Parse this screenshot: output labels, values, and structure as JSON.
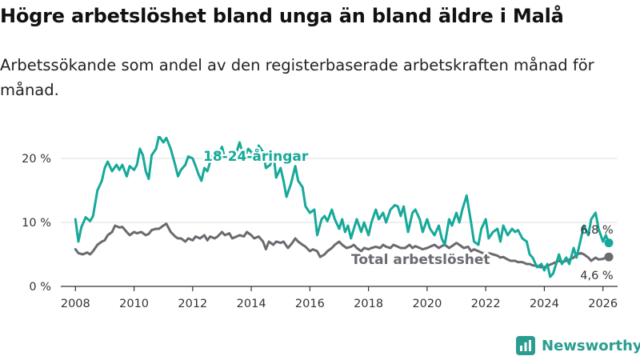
{
  "title": "Högre arbetslöshet bland unga än bland äldre i Malå",
  "subtitle": "Arbetssökande som andel av den registerbaserade arbetskraften månad för månad.",
  "brand": {
    "name": "Newsworthy"
  },
  "colors": {
    "youth": "#16a99a",
    "total": "#6b6a70",
    "axis": "#333333",
    "grid": "#dddddd"
  },
  "chart_data": {
    "type": "line",
    "title": "Högre arbetslöshet bland unga än bland äldre i Malå",
    "xlabel": "",
    "ylabel": "",
    "xlim": [
      2007.5,
      2026.5
    ],
    "ylim": [
      0,
      23
    ],
    "y_ticks": [
      0,
      10,
      20
    ],
    "y_tick_labels": [
      "0 %",
      "10 %",
      "20 %"
    ],
    "x_ticks": [
      2008,
      2010,
      2012,
      2014,
      2016,
      2018,
      2020,
      2022,
      2024,
      2026
    ],
    "x_tick_labels": [
      "2008",
      "2010",
      "2012",
      "2014",
      "2016",
      "2018",
      "2020",
      "2022",
      "2024",
      "2026"
    ],
    "series": [
      {
        "name": "18-24-åringar",
        "label": "18-24-åringar",
        "end_label": "6,8 %",
        "end_value": 6.8,
        "points": [
          [
            2008.0,
            10.5
          ],
          [
            2008.1,
            7.0
          ],
          [
            2008.2,
            9.2
          ],
          [
            2008.35,
            10.8
          ],
          [
            2008.5,
            10.2
          ],
          [
            2008.6,
            11.0
          ],
          [
            2008.75,
            15.0
          ],
          [
            2008.9,
            16.5
          ],
          [
            2009.0,
            18.5
          ],
          [
            2009.1,
            19.5
          ],
          [
            2009.25,
            18.0
          ],
          [
            2009.4,
            19.0
          ],
          [
            2009.5,
            18.2
          ],
          [
            2009.6,
            19.0
          ],
          [
            2009.75,
            17.2
          ],
          [
            2009.85,
            18.8
          ],
          [
            2010.0,
            18.2
          ],
          [
            2010.1,
            19.0
          ],
          [
            2010.2,
            21.5
          ],
          [
            2010.3,
            20.5
          ],
          [
            2010.4,
            18.0
          ],
          [
            2010.5,
            16.8
          ],
          [
            2010.6,
            20.5
          ],
          [
            2010.75,
            21.5
          ],
          [
            2010.85,
            23.5
          ],
          [
            2011.0,
            22.5
          ],
          [
            2011.1,
            23.2
          ],
          [
            2011.25,
            21.5
          ],
          [
            2011.4,
            19.0
          ],
          [
            2011.5,
            17.2
          ],
          [
            2011.6,
            18.2
          ],
          [
            2011.75,
            19.0
          ],
          [
            2011.85,
            20.3
          ],
          [
            2012.0,
            20.0
          ],
          [
            2012.1,
            18.8
          ],
          [
            2012.2,
            17.5
          ],
          [
            2012.3,
            16.5
          ],
          [
            2012.4,
            18.5
          ],
          [
            2012.5,
            18.0
          ],
          [
            2012.6,
            19.5
          ],
          [
            2012.75,
            21.0
          ],
          [
            2012.9,
            20.8
          ],
          [
            2013.0,
            21.8
          ],
          [
            2013.1,
            20.0
          ],
          [
            2013.25,
            20.5
          ],
          [
            2013.35,
            19.5
          ],
          [
            2013.5,
            21.0
          ],
          [
            2013.6,
            22.5
          ],
          [
            2013.75,
            20.0
          ],
          [
            2013.9,
            21.5
          ],
          [
            2014.0,
            21.0
          ],
          [
            2014.15,
            19.5
          ],
          [
            2014.25,
            22.0
          ],
          [
            2014.4,
            21.0
          ],
          [
            2014.5,
            18.5
          ],
          [
            2014.65,
            19.0
          ],
          [
            2014.75,
            21.0
          ],
          [
            2014.85,
            17.0
          ],
          [
            2015.0,
            18.5
          ],
          [
            2015.1,
            16.5
          ],
          [
            2015.2,
            14.0
          ],
          [
            2015.35,
            16.0
          ],
          [
            2015.5,
            18.8
          ],
          [
            2015.6,
            16.5
          ],
          [
            2015.75,
            15.5
          ],
          [
            2015.85,
            12.5
          ],
          [
            2016.0,
            11.5
          ],
          [
            2016.15,
            12.0
          ],
          [
            2016.25,
            8.0
          ],
          [
            2016.4,
            10.5
          ],
          [
            2016.5,
            11.0
          ],
          [
            2016.6,
            10.2
          ],
          [
            2016.75,
            12.0
          ],
          [
            2016.85,
            10.5
          ],
          [
            2017.0,
            9.0
          ],
          [
            2017.1,
            10.5
          ],
          [
            2017.2,
            8.5
          ],
          [
            2017.3,
            9.5
          ],
          [
            2017.4,
            7.5
          ],
          [
            2017.5,
            9.0
          ],
          [
            2017.6,
            10.5
          ],
          [
            2017.75,
            8.5
          ],
          [
            2017.85,
            10.0
          ],
          [
            2018.0,
            8.0
          ],
          [
            2018.1,
            10.0
          ],
          [
            2018.25,
            12.0
          ],
          [
            2018.35,
            10.5
          ],
          [
            2018.5,
            11.5
          ],
          [
            2018.6,
            10.0
          ],
          [
            2018.75,
            12.0
          ],
          [
            2018.9,
            12.7
          ],
          [
            2019.0,
            12.5
          ],
          [
            2019.1,
            11.0
          ],
          [
            2019.2,
            12.5
          ],
          [
            2019.35,
            8.5
          ],
          [
            2019.5,
            11.5
          ],
          [
            2019.6,
            12.0
          ],
          [
            2019.75,
            10.5
          ],
          [
            2019.85,
            8.5
          ],
          [
            2020.0,
            10.5
          ],
          [
            2020.1,
            9.0
          ],
          [
            2020.25,
            8.0
          ],
          [
            2020.4,
            9.5
          ],
          [
            2020.5,
            7.5
          ],
          [
            2020.6,
            6.5
          ],
          [
            2020.75,
            10.5
          ],
          [
            2020.85,
            9.5
          ],
          [
            2021.0,
            11.5
          ],
          [
            2021.1,
            10.0
          ],
          [
            2021.2,
            12.0
          ],
          [
            2021.35,
            14.2
          ],
          [
            2021.5,
            10.0
          ],
          [
            2021.6,
            7.0
          ],
          [
            2021.75,
            6.5
          ],
          [
            2021.85,
            9.0
          ],
          [
            2022.0,
            10.5
          ],
          [
            2022.1,
            7.5
          ],
          [
            2022.25,
            8.5
          ],
          [
            2022.4,
            9.0
          ],
          [
            2022.5,
            7.0
          ],
          [
            2022.6,
            9.5
          ],
          [
            2022.75,
            8.0
          ],
          [
            2022.9,
            9.0
          ],
          [
            2023.0,
            8.5
          ],
          [
            2023.1,
            8.8
          ],
          [
            2023.25,
            7.5
          ],
          [
            2023.4,
            7.0
          ],
          [
            2023.5,
            5.0
          ],
          [
            2023.6,
            4.5
          ],
          [
            2023.75,
            3.0
          ],
          [
            2023.9,
            3.5
          ],
          [
            2024.0,
            2.5
          ],
          [
            2024.1,
            3.5
          ],
          [
            2024.2,
            1.5
          ],
          [
            2024.3,
            2.0
          ],
          [
            2024.4,
            3.5
          ],
          [
            2024.5,
            5.0
          ],
          [
            2024.6,
            3.5
          ],
          [
            2024.75,
            4.5
          ],
          [
            2024.85,
            3.5
          ],
          [
            2025.0,
            6.0
          ],
          [
            2025.1,
            4.5
          ],
          [
            2025.25,
            7.5
          ],
          [
            2025.35,
            9.5
          ],
          [
            2025.5,
            8.0
          ],
          [
            2025.6,
            10.5
          ],
          [
            2025.75,
            11.5
          ],
          [
            2025.85,
            9.0
          ],
          [
            2026.0,
            7.0
          ],
          [
            2026.1,
            8.0
          ],
          [
            2026.2,
            6.8
          ]
        ]
      },
      {
        "name": "Total arbetslöshet",
        "label": "Total arbetslöshet",
        "end_label": "4,6 %",
        "end_value": 4.6,
        "points": [
          [
            2008.0,
            5.8
          ],
          [
            2008.1,
            5.2
          ],
          [
            2008.25,
            5.0
          ],
          [
            2008.4,
            5.3
          ],
          [
            2008.5,
            5.0
          ],
          [
            2008.6,
            5.5
          ],
          [
            2008.75,
            6.5
          ],
          [
            2008.9,
            7.0
          ],
          [
            2009.0,
            7.2
          ],
          [
            2009.1,
            8.0
          ],
          [
            2009.25,
            8.5
          ],
          [
            2009.35,
            9.5
          ],
          [
            2009.5,
            9.2
          ],
          [
            2009.6,
            9.3
          ],
          [
            2009.75,
            8.5
          ],
          [
            2009.85,
            8.0
          ],
          [
            2010.0,
            8.5
          ],
          [
            2010.1,
            8.3
          ],
          [
            2010.25,
            8.5
          ],
          [
            2010.4,
            8.0
          ],
          [
            2010.5,
            8.2
          ],
          [
            2010.6,
            8.8
          ],
          [
            2010.75,
            9.0
          ],
          [
            2010.85,
            9.0
          ],
          [
            2011.0,
            9.5
          ],
          [
            2011.1,
            9.8
          ],
          [
            2011.25,
            8.5
          ],
          [
            2011.4,
            7.8
          ],
          [
            2011.5,
            7.5
          ],
          [
            2011.6,
            7.5
          ],
          [
            2011.75,
            7.0
          ],
          [
            2011.85,
            7.5
          ],
          [
            2012.0,
            7.2
          ],
          [
            2012.1,
            7.8
          ],
          [
            2012.25,
            7.5
          ],
          [
            2012.4,
            8.0
          ],
          [
            2012.5,
            7.2
          ],
          [
            2012.6,
            7.8
          ],
          [
            2012.75,
            7.5
          ],
          [
            2012.85,
            7.8
          ],
          [
            2013.0,
            8.5
          ],
          [
            2013.1,
            8.0
          ],
          [
            2013.25,
            8.3
          ],
          [
            2013.35,
            7.5
          ],
          [
            2013.5,
            7.8
          ],
          [
            2013.6,
            8.0
          ],
          [
            2013.75,
            7.8
          ],
          [
            2013.85,
            8.5
          ],
          [
            2014.0,
            8.0
          ],
          [
            2014.1,
            7.5
          ],
          [
            2014.25,
            7.8
          ],
          [
            2014.4,
            7.0
          ],
          [
            2014.5,
            5.8
          ],
          [
            2014.6,
            7.0
          ],
          [
            2014.75,
            6.5
          ],
          [
            2014.85,
            7.0
          ],
          [
            2015.0,
            6.8
          ],
          [
            2015.1,
            7.0
          ],
          [
            2015.25,
            6.0
          ],
          [
            2015.4,
            6.8
          ],
          [
            2015.5,
            7.5
          ],
          [
            2015.6,
            7.0
          ],
          [
            2015.75,
            6.5
          ],
          [
            2015.85,
            6.2
          ],
          [
            2016.0,
            5.5
          ],
          [
            2016.1,
            5.8
          ],
          [
            2016.25,
            5.5
          ],
          [
            2016.35,
            4.6
          ],
          [
            2016.5,
            5.0
          ],
          [
            2016.6,
            5.5
          ],
          [
            2016.75,
            6.0
          ],
          [
            2016.85,
            6.5
          ],
          [
            2017.0,
            7.0
          ],
          [
            2017.1,
            6.5
          ],
          [
            2017.25,
            6.0
          ],
          [
            2017.4,
            6.2
          ],
          [
            2017.5,
            6.5
          ],
          [
            2017.6,
            6.0
          ],
          [
            2017.75,
            5.5
          ],
          [
            2017.85,
            6.0
          ],
          [
            2018.0,
            5.8
          ],
          [
            2018.1,
            6.0
          ],
          [
            2018.25,
            6.2
          ],
          [
            2018.4,
            6.0
          ],
          [
            2018.5,
            6.5
          ],
          [
            2018.6,
            6.2
          ],
          [
            2018.75,
            6.0
          ],
          [
            2018.85,
            6.5
          ],
          [
            2019.0,
            6.2
          ],
          [
            2019.1,
            6.0
          ],
          [
            2019.25,
            6.0
          ],
          [
            2019.4,
            6.5
          ],
          [
            2019.5,
            6.0
          ],
          [
            2019.6,
            6.3
          ],
          [
            2019.75,
            6.0
          ],
          [
            2019.85,
            5.8
          ],
          [
            2020.0,
            6.0
          ],
          [
            2020.1,
            6.2
          ],
          [
            2020.25,
            6.5
          ],
          [
            2020.4,
            6.0
          ],
          [
            2020.5,
            6.3
          ],
          [
            2020.6,
            6.5
          ],
          [
            2020.75,
            6.0
          ],
          [
            2020.85,
            6.3
          ],
          [
            2021.0,
            6.8
          ],
          [
            2021.1,
            6.5
          ],
          [
            2021.25,
            6.0
          ],
          [
            2021.4,
            6.2
          ],
          [
            2021.5,
            5.5
          ],
          [
            2021.6,
            5.8
          ],
          [
            2021.75,
            5.5
          ],
          [
            2021.85,
            5.3
          ],
          [
            2022.0,
            5.0
          ],
          [
            2022.1,
            5.2
          ],
          [
            2022.25,
            5.0
          ],
          [
            2022.4,
            4.8
          ],
          [
            2022.5,
            4.5
          ],
          [
            2022.6,
            4.6
          ],
          [
            2022.75,
            4.2
          ],
          [
            2022.85,
            4.0
          ],
          [
            2023.0,
            4.0
          ],
          [
            2023.1,
            3.8
          ],
          [
            2023.25,
            3.8
          ],
          [
            2023.4,
            3.5
          ],
          [
            2023.5,
            3.5
          ],
          [
            2023.6,
            3.3
          ],
          [
            2023.75,
            3.2
          ],
          [
            2023.85,
            3.0
          ],
          [
            2024.0,
            3.0
          ],
          [
            2024.1,
            3.2
          ],
          [
            2024.25,
            3.5
          ],
          [
            2024.4,
            3.8
          ],
          [
            2024.5,
            4.0
          ],
          [
            2024.6,
            3.8
          ],
          [
            2024.75,
            4.0
          ],
          [
            2024.85,
            4.2
          ],
          [
            2025.0,
            4.5
          ],
          [
            2025.1,
            5.0
          ],
          [
            2025.25,
            5.2
          ],
          [
            2025.35,
            5.0
          ],
          [
            2025.5,
            4.5
          ],
          [
            2025.6,
            4.0
          ],
          [
            2025.75,
            4.5
          ],
          [
            2025.85,
            4.2
          ],
          [
            2026.0,
            4.3
          ],
          [
            2026.1,
            4.5
          ],
          [
            2026.2,
            4.6
          ]
        ]
      }
    ]
  }
}
